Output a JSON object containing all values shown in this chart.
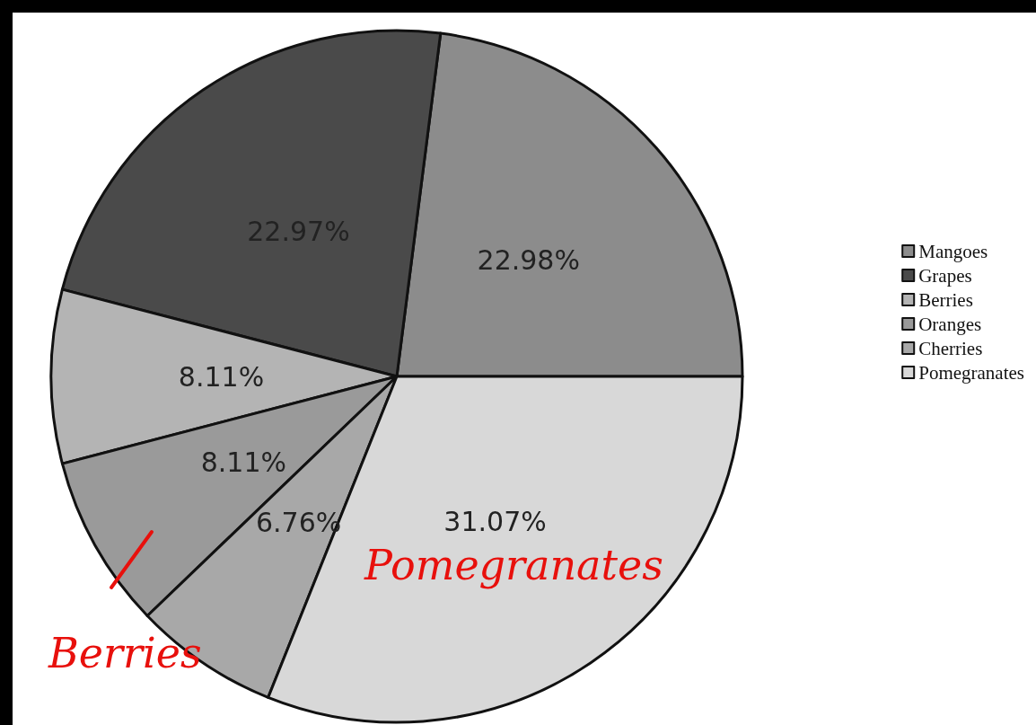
{
  "chart_data": {
    "type": "pie",
    "categories": [
      "Mangoes",
      "Grapes",
      "Berries",
      "Oranges",
      "Cherries",
      "Pomegranates"
    ],
    "values": [
      22.98,
      22.97,
      8.11,
      8.11,
      6.76,
      31.07
    ],
    "value_labels": [
      "22.98%",
      "22.97%",
      "8.11%",
      "8.11%",
      "6.76%",
      "31.07%"
    ],
    "colors": [
      "#8c8c8c",
      "#4a4a4a",
      "#b4b4b4",
      "#9a9a9a",
      "#a8a8a8",
      "#d8d8d8"
    ],
    "legend": "right",
    "annotations": [
      "Berries",
      "Pomegranates"
    ]
  }
}
